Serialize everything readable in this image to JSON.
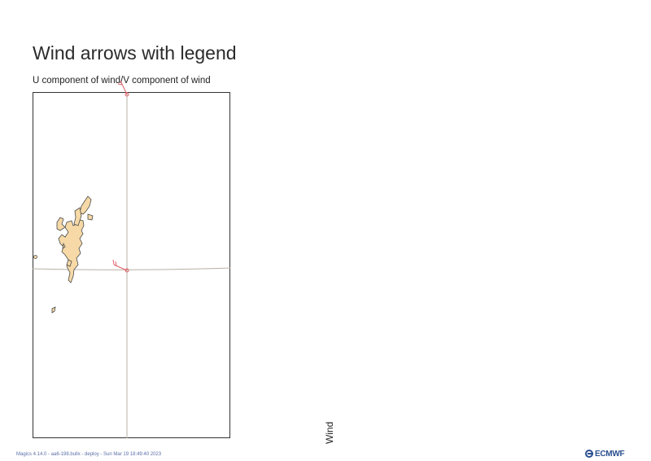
{
  "title": "Wind arrows with legend",
  "subtitle": "U component of wind/V component of wind",
  "legend": {
    "label": "Wind"
  },
  "footer": {
    "text": "Magics 4.14.0 - aa6-198.bullx - deploy - Sun Mar 19 18:49:40 2023"
  },
  "logo": {
    "text": "ECMWF",
    "icon": "ecmwf-logo-icon"
  },
  "map": {
    "land_color": "#f6d9a6",
    "coastline_color": "#4a4a4a",
    "grid_color": "#b0a898",
    "arrow_color": "#e0606a"
  }
}
